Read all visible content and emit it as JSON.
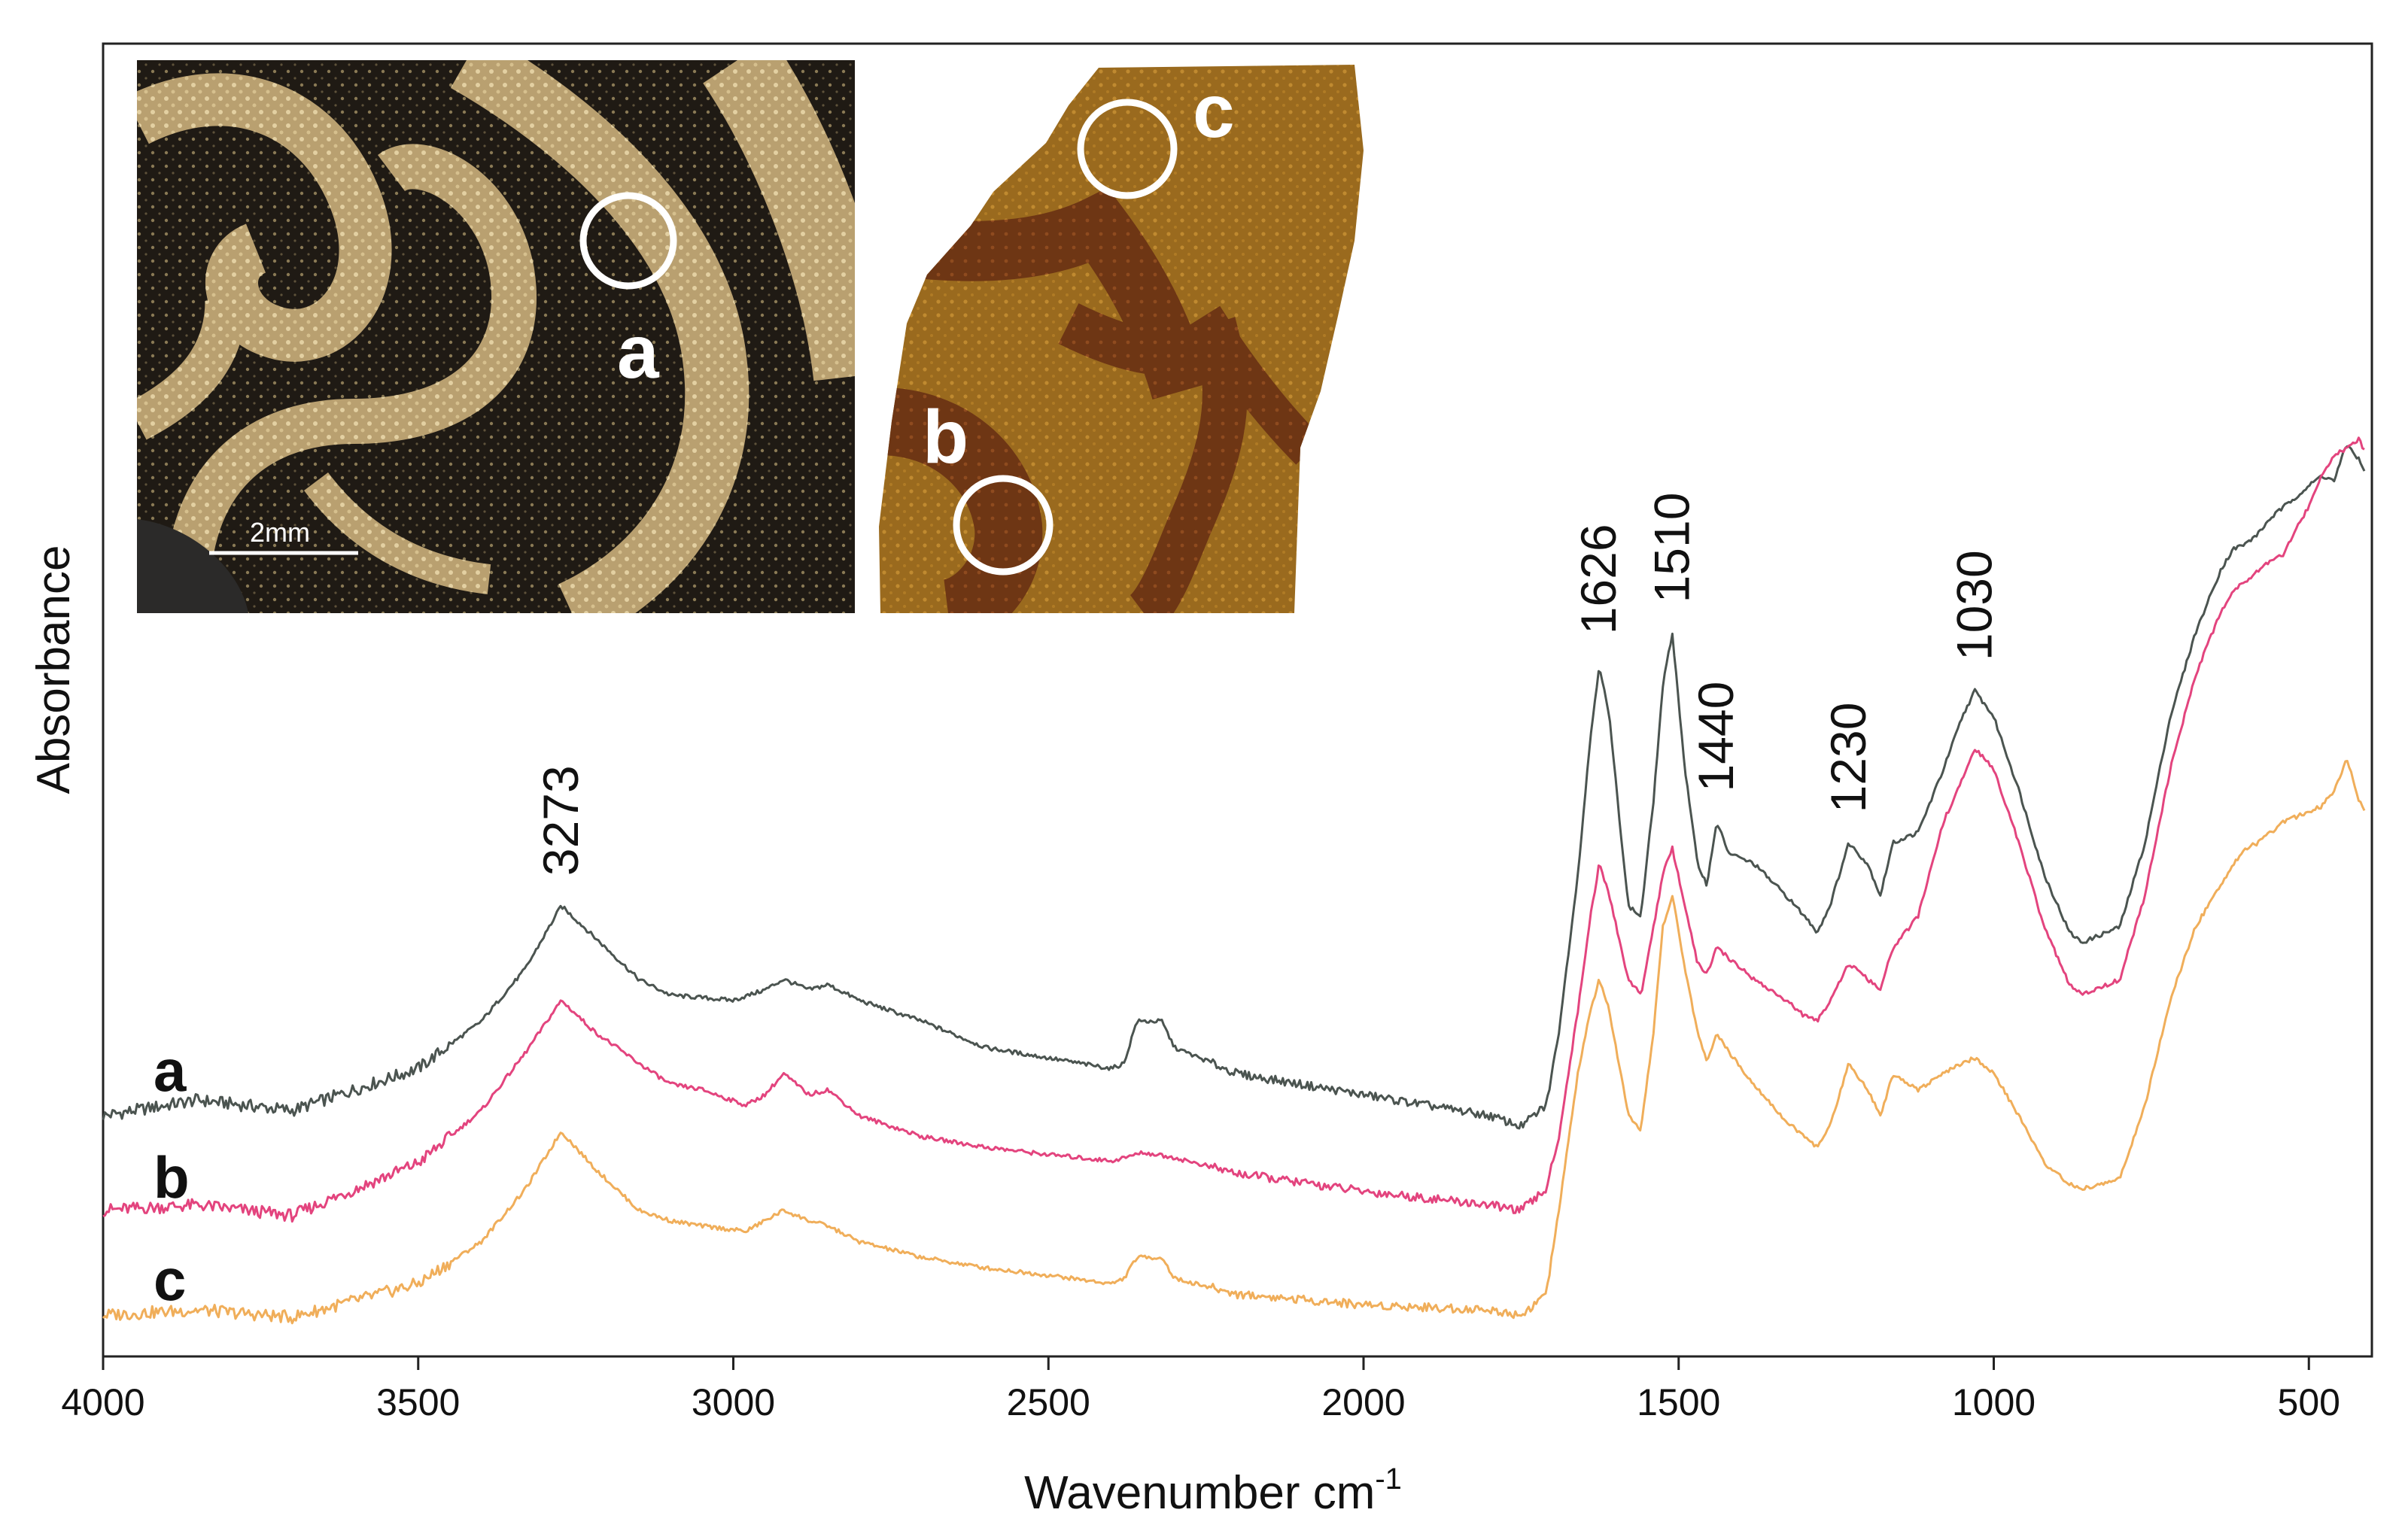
{
  "chart_data": {
    "type": "line",
    "title": "",
    "xlabel": "Wavenumber cm-1",
    "xlabel_main": "Wavenumber cm",
    "xlabel_superscript": "-1",
    "ylabel": "Absorbance",
    "xlim": [
      4000,
      400
    ],
    "x_reversed": true,
    "ylim": [
      0,
      1.0
    ],
    "y_ticks_shown": false,
    "grid": false,
    "x_ticks": [
      "4000",
      "3500",
      "3000",
      "2500",
      "2000",
      "1500",
      "1000",
      "500"
    ],
    "peak_annotations": [
      {
        "label": "3273",
        "x": 3273
      },
      {
        "label": "1626",
        "x": 1626
      },
      {
        "label": "1510",
        "x": 1510
      },
      {
        "label": "1440",
        "x": 1440
      },
      {
        "label": "1230",
        "x": 1230
      },
      {
        "label": "1030",
        "x": 1030
      }
    ],
    "series": [
      {
        "name": "a",
        "color": "#4b5450",
        "points": [
          [
            4000,
            0.22
          ],
          [
            3850,
            0.235
          ],
          [
            3700,
            0.225
          ],
          [
            3500,
            0.265
          ],
          [
            3400,
            0.31
          ],
          [
            3330,
            0.36
          ],
          [
            3273,
            0.42
          ],
          [
            3220,
            0.39
          ],
          [
            3150,
            0.35
          ],
          [
            3100,
            0.335
          ],
          [
            3000,
            0.33
          ],
          [
            2950,
            0.34
          ],
          [
            2920,
            0.35
          ],
          [
            2880,
            0.34
          ],
          [
            2850,
            0.345
          ],
          [
            2800,
            0.33
          ],
          [
            2700,
            0.31
          ],
          [
            2600,
            0.285
          ],
          [
            2500,
            0.275
          ],
          [
            2400,
            0.265
          ],
          [
            2380,
            0.27
          ],
          [
            2360,
            0.31
          ],
          [
            2320,
            0.31
          ],
          [
            2300,
            0.285
          ],
          [
            2200,
            0.26
          ],
          [
            2000,
            0.24
          ],
          [
            1800,
            0.22
          ],
          [
            1750,
            0.21
          ],
          [
            1710,
            0.23
          ],
          [
            1690,
            0.3
          ],
          [
            1660,
            0.45
          ],
          [
            1640,
            0.58
          ],
          [
            1626,
            0.65
          ],
          [
            1610,
            0.6
          ],
          [
            1580,
            0.42
          ],
          [
            1560,
            0.41
          ],
          [
            1540,
            0.52
          ],
          [
            1525,
            0.63
          ],
          [
            1510,
            0.68
          ],
          [
            1490,
            0.55
          ],
          [
            1470,
            0.46
          ],
          [
            1455,
            0.44
          ],
          [
            1440,
            0.5
          ],
          [
            1420,
            0.47
          ],
          [
            1380,
            0.46
          ],
          [
            1330,
            0.43
          ],
          [
            1300,
            0.41
          ],
          [
            1280,
            0.395
          ],
          [
            1260,
            0.42
          ],
          [
            1230,
            0.48
          ],
          [
            1200,
            0.46
          ],
          [
            1180,
            0.43
          ],
          [
            1160,
            0.48
          ],
          [
            1120,
            0.49
          ],
          [
            1080,
            0.55
          ],
          [
            1050,
            0.6
          ],
          [
            1030,
            0.625
          ],
          [
            1000,
            0.6
          ],
          [
            960,
            0.53
          ],
          [
            920,
            0.45
          ],
          [
            880,
            0.395
          ],
          [
            860,
            0.385
          ],
          [
            800,
            0.4
          ],
          [
            760,
            0.48
          ],
          [
            720,
            0.6
          ],
          [
            680,
            0.68
          ],
          [
            640,
            0.74
          ],
          [
            620,
            0.76
          ],
          [
            600,
            0.765
          ],
          [
            580,
            0.775
          ],
          [
            560,
            0.79
          ],
          [
            540,
            0.8
          ],
          [
            520,
            0.81
          ],
          [
            500,
            0.82
          ],
          [
            480,
            0.83
          ],
          [
            460,
            0.825
          ],
          [
            440,
            0.86
          ],
          [
            420,
            0.845
          ],
          [
            410,
            0.83
          ]
        ]
      },
      {
        "name": "b",
        "color": "#e3447e",
        "points": [
          [
            4000,
            0.13
          ],
          [
            3850,
            0.135
          ],
          [
            3700,
            0.125
          ],
          [
            3500,
            0.175
          ],
          [
            3400,
            0.225
          ],
          [
            3330,
            0.28
          ],
          [
            3273,
            0.33
          ],
          [
            3220,
            0.3
          ],
          [
            3150,
            0.27
          ],
          [
            3100,
            0.25
          ],
          [
            3050,
            0.245
          ],
          [
            2980,
            0.23
          ],
          [
            2950,
            0.24
          ],
          [
            2920,
            0.26
          ],
          [
            2880,
            0.24
          ],
          [
            2850,
            0.245
          ],
          [
            2800,
            0.22
          ],
          [
            2700,
            0.2
          ],
          [
            2600,
            0.19
          ],
          [
            2500,
            0.183
          ],
          [
            2400,
            0.177
          ],
          [
            2380,
            0.18
          ],
          [
            2350,
            0.185
          ],
          [
            2300,
            0.18
          ],
          [
            2200,
            0.165
          ],
          [
            2000,
            0.148
          ],
          [
            1800,
            0.135
          ],
          [
            1750,
            0.13
          ],
          [
            1710,
            0.15
          ],
          [
            1690,
            0.2
          ],
          [
            1660,
            0.32
          ],
          [
            1640,
            0.41
          ],
          [
            1626,
            0.46
          ],
          [
            1610,
            0.43
          ],
          [
            1580,
            0.35
          ],
          [
            1560,
            0.335
          ],
          [
            1540,
            0.4
          ],
          [
            1525,
            0.45
          ],
          [
            1510,
            0.475
          ],
          [
            1490,
            0.42
          ],
          [
            1470,
            0.365
          ],
          [
            1455,
            0.355
          ],
          [
            1440,
            0.38
          ],
          [
            1420,
            0.37
          ],
          [
            1380,
            0.35
          ],
          [
            1330,
            0.33
          ],
          [
            1300,
            0.315
          ],
          [
            1280,
            0.31
          ],
          [
            1260,
            0.33
          ],
          [
            1230,
            0.365
          ],
          [
            1200,
            0.35
          ],
          [
            1180,
            0.34
          ],
          [
            1160,
            0.38
          ],
          [
            1120,
            0.41
          ],
          [
            1080,
            0.5
          ],
          [
            1050,
            0.54
          ],
          [
            1030,
            0.57
          ],
          [
            1000,
            0.55
          ],
          [
            960,
            0.48
          ],
          [
            920,
            0.4
          ],
          [
            880,
            0.345
          ],
          [
            860,
            0.335
          ],
          [
            800,
            0.35
          ],
          [
            760,
            0.43
          ],
          [
            720,
            0.55
          ],
          [
            680,
            0.64
          ],
          [
            640,
            0.7
          ],
          [
            620,
            0.72
          ],
          [
            600,
            0.73
          ],
          [
            580,
            0.74
          ],
          [
            560,
            0.75
          ],
          [
            540,
            0.755
          ],
          [
            520,
            0.78
          ],
          [
            500,
            0.8
          ],
          [
            480,
            0.83
          ],
          [
            460,
            0.85
          ],
          [
            440,
            0.855
          ],
          [
            420,
            0.865
          ],
          [
            410,
            0.85
          ]
        ]
      },
      {
        "name": "c",
        "color": "#f0ae5a",
        "points": [
          [
            4000,
            0.03
          ],
          [
            3850,
            0.035
          ],
          [
            3700,
            0.028
          ],
          [
            3500,
            0.06
          ],
          [
            3400,
            0.1
          ],
          [
            3330,
            0.15
          ],
          [
            3273,
            0.205
          ],
          [
            3220,
            0.17
          ],
          [
            3150,
            0.13
          ],
          [
            3100,
            0.12
          ],
          [
            3050,
            0.115
          ],
          [
            2980,
            0.11
          ],
          [
            2950,
            0.12
          ],
          [
            2920,
            0.13
          ],
          [
            2880,
            0.12
          ],
          [
            2850,
            0.115
          ],
          [
            2800,
            0.1
          ],
          [
            2700,
            0.085
          ],
          [
            2600,
            0.075
          ],
          [
            2500,
            0.068
          ],
          [
            2400,
            0.06
          ],
          [
            2380,
            0.065
          ],
          [
            2360,
            0.085
          ],
          [
            2320,
            0.085
          ],
          [
            2300,
            0.065
          ],
          [
            2200,
            0.05
          ],
          [
            2000,
            0.04
          ],
          [
            1800,
            0.035
          ],
          [
            1750,
            0.03
          ],
          [
            1710,
            0.05
          ],
          [
            1690,
            0.13
          ],
          [
            1660,
            0.26
          ],
          [
            1640,
            0.32
          ],
          [
            1626,
            0.35
          ],
          [
            1610,
            0.32
          ],
          [
            1580,
            0.22
          ],
          [
            1560,
            0.205
          ],
          [
            1540,
            0.3
          ],
          [
            1525,
            0.4
          ],
          [
            1510,
            0.43
          ],
          [
            1490,
            0.36
          ],
          [
            1470,
            0.3
          ],
          [
            1455,
            0.27
          ],
          [
            1440,
            0.3
          ],
          [
            1420,
            0.28
          ],
          [
            1380,
            0.25
          ],
          [
            1330,
            0.215
          ],
          [
            1300,
            0.2
          ],
          [
            1280,
            0.19
          ],
          [
            1260,
            0.21
          ],
          [
            1230,
            0.27
          ],
          [
            1200,
            0.245
          ],
          [
            1180,
            0.22
          ],
          [
            1160,
            0.26
          ],
          [
            1120,
            0.245
          ],
          [
            1080,
            0.26
          ],
          [
            1050,
            0.27
          ],
          [
            1030,
            0.275
          ],
          [
            1000,
            0.26
          ],
          [
            960,
            0.22
          ],
          [
            920,
            0.175
          ],
          [
            880,
            0.155
          ],
          [
            860,
            0.15
          ],
          [
            800,
            0.16
          ],
          [
            760,
            0.23
          ],
          [
            720,
            0.33
          ],
          [
            680,
            0.4
          ],
          [
            640,
            0.44
          ],
          [
            620,
            0.46
          ],
          [
            600,
            0.475
          ],
          [
            580,
            0.48
          ],
          [
            560,
            0.49
          ],
          [
            540,
            0.5
          ],
          [
            520,
            0.505
          ],
          [
            500,
            0.51
          ],
          [
            480,
            0.515
          ],
          [
            460,
            0.53
          ],
          [
            440,
            0.56
          ],
          [
            420,
            0.52
          ],
          [
            410,
            0.51
          ]
        ]
      }
    ],
    "series_labels": [
      "a",
      "b",
      "c"
    ]
  },
  "insets": {
    "left": {
      "circle_label": "a",
      "scale_bar_label": "2mm"
    },
    "right": {
      "circle_labels": [
        "b",
        "c"
      ]
    }
  }
}
